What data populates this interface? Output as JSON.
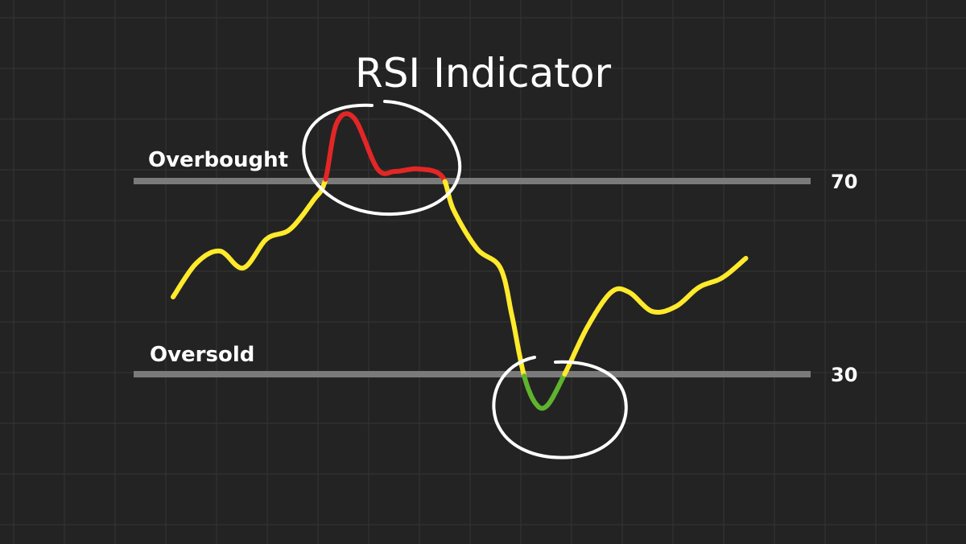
{
  "chart_data": {
    "type": "line",
    "title": "RSI Indicator",
    "xlabel": "",
    "ylabel": "",
    "grid": true,
    "ylim": [
      14,
      88
    ],
    "xlim": [
      0,
      100
    ],
    "levels": [
      {
        "value": 70,
        "label": "70",
        "zone": "Overbought"
      },
      {
        "value": 30,
        "label": "30",
        "zone": "Oversold"
      }
    ],
    "series": [
      {
        "x": [
          0,
          4,
          8,
          12,
          16,
          20,
          24,
          26,
          28,
          31,
          35,
          38,
          42,
          46,
          48,
          52,
          56,
          58,
          60,
          62,
          64,
          67,
          71,
          75,
          78,
          82,
          86,
          90,
          94,
          98
        ],
        "y": [
          46,
          53,
          55.5,
          52,
          58,
          60,
          66,
          70,
          82,
          83,
          72.5,
          72,
          72.5,
          71,
          64,
          56,
          52,
          42,
          30,
          24,
          23.5,
          30,
          40,
          47,
          47,
          43,
          44,
          48,
          50,
          54
        ],
        "colors": {
          "normal": "#ffea2b",
          "overbought": "#e32626",
          "oversold": "#5fb32e"
        }
      }
    ],
    "highlight_circles": [
      "overbought-peak",
      "oversold-trough"
    ],
    "colors": {
      "background": "#232323",
      "grid": "#353535",
      "level_line": "#7a7a7a",
      "circle": "#ffffff"
    }
  }
}
